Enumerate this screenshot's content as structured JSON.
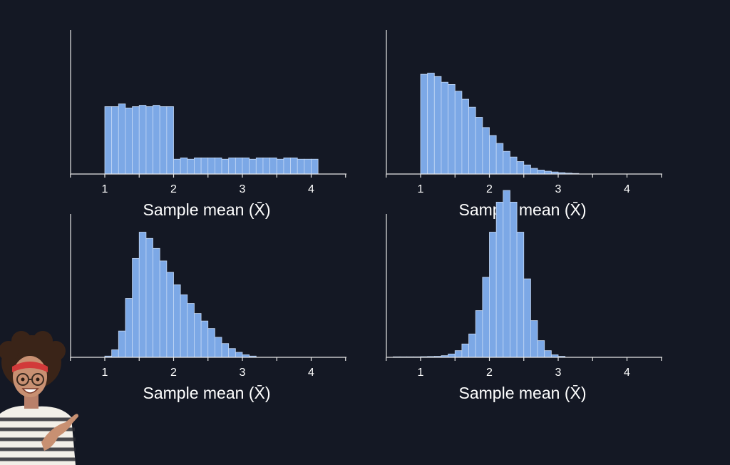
{
  "colors": {
    "background": "#141824",
    "bar_fill": "#7ca8e6",
    "bar_stroke": "#c4d8f5",
    "axis": "#e6e6e6",
    "text": "#ffffff"
  },
  "decoration": {
    "character": "smiling woman with curly hair, red headband, round glasses and striped sweater pointing to the right"
  },
  "chart_data": [
    {
      "type": "bar",
      "xlabel": "Sample mean (X̄)",
      "xlim": [
        0.5,
        4.5
      ],
      "xticks": [
        "1",
        "2",
        "3",
        "4"
      ],
      "bin_width": 0.1,
      "bin_start": 1.0,
      "values": [
        0.5,
        0.5,
        0.52,
        0.49,
        0.5,
        0.51,
        0.5,
        0.51,
        0.5,
        0.5,
        0.11,
        0.12,
        0.11,
        0.12,
        0.12,
        0.12,
        0.12,
        0.11,
        0.12,
        0.12,
        0.12,
        0.11,
        0.12,
        0.12,
        0.12,
        0.11,
        0.12,
        0.12,
        0.11,
        0.11,
        0.11
      ],
      "ylim": [
        0,
        1.0
      ]
    },
    {
      "type": "bar",
      "xlabel": "Sample mean (X̄)",
      "xlim": [
        0.5,
        4.5
      ],
      "xticks": [
        "1",
        "2",
        "3",
        "4"
      ],
      "bin_width": 0.1,
      "bin_start": 1.0,
      "values": [
        0.88,
        0.89,
        0.86,
        0.81,
        0.79,
        0.73,
        0.66,
        0.59,
        0.5,
        0.41,
        0.34,
        0.27,
        0.2,
        0.15,
        0.11,
        0.08,
        0.05,
        0.035,
        0.025,
        0.018,
        0.012,
        0.008,
        0.005
      ],
      "ylim": [
        0,
        1.0
      ]
    },
    {
      "type": "bar",
      "xlabel": "Sample mean (X̄)",
      "xlim": [
        0.5,
        4.5
      ],
      "xticks": [
        "1",
        "2",
        "3",
        "4"
      ],
      "bin_width": 0.1,
      "bin_start": 1.0,
      "values": [
        0.01,
        0.06,
        0.21,
        0.47,
        0.79,
        1.0,
        0.95,
        0.87,
        0.77,
        0.68,
        0.58,
        0.5,
        0.43,
        0.35,
        0.29,
        0.23,
        0.16,
        0.11,
        0.07,
        0.04,
        0.02,
        0.01
      ],
      "ylim": [
        0,
        1.0
      ]
    },
    {
      "type": "bar",
      "xlabel": "Sample mean (X̄)",
      "xlim": [
        0.5,
        4.5
      ],
      "xticks": [
        "1",
        "2",
        "3",
        "4"
      ],
      "bin_width": 0.1,
      "bin_start": 0.6,
      "values": [
        0.003,
        0.003,
        0.003,
        0.003,
        0.004,
        0.005,
        0.006,
        0.01,
        0.02,
        0.04,
        0.08,
        0.14,
        0.28,
        0.48,
        0.75,
        0.93,
        1.0,
        0.93,
        0.75,
        0.47,
        0.22,
        0.1,
        0.04,
        0.015,
        0.006
      ],
      "ylim": [
        0,
        1.0
      ]
    }
  ]
}
